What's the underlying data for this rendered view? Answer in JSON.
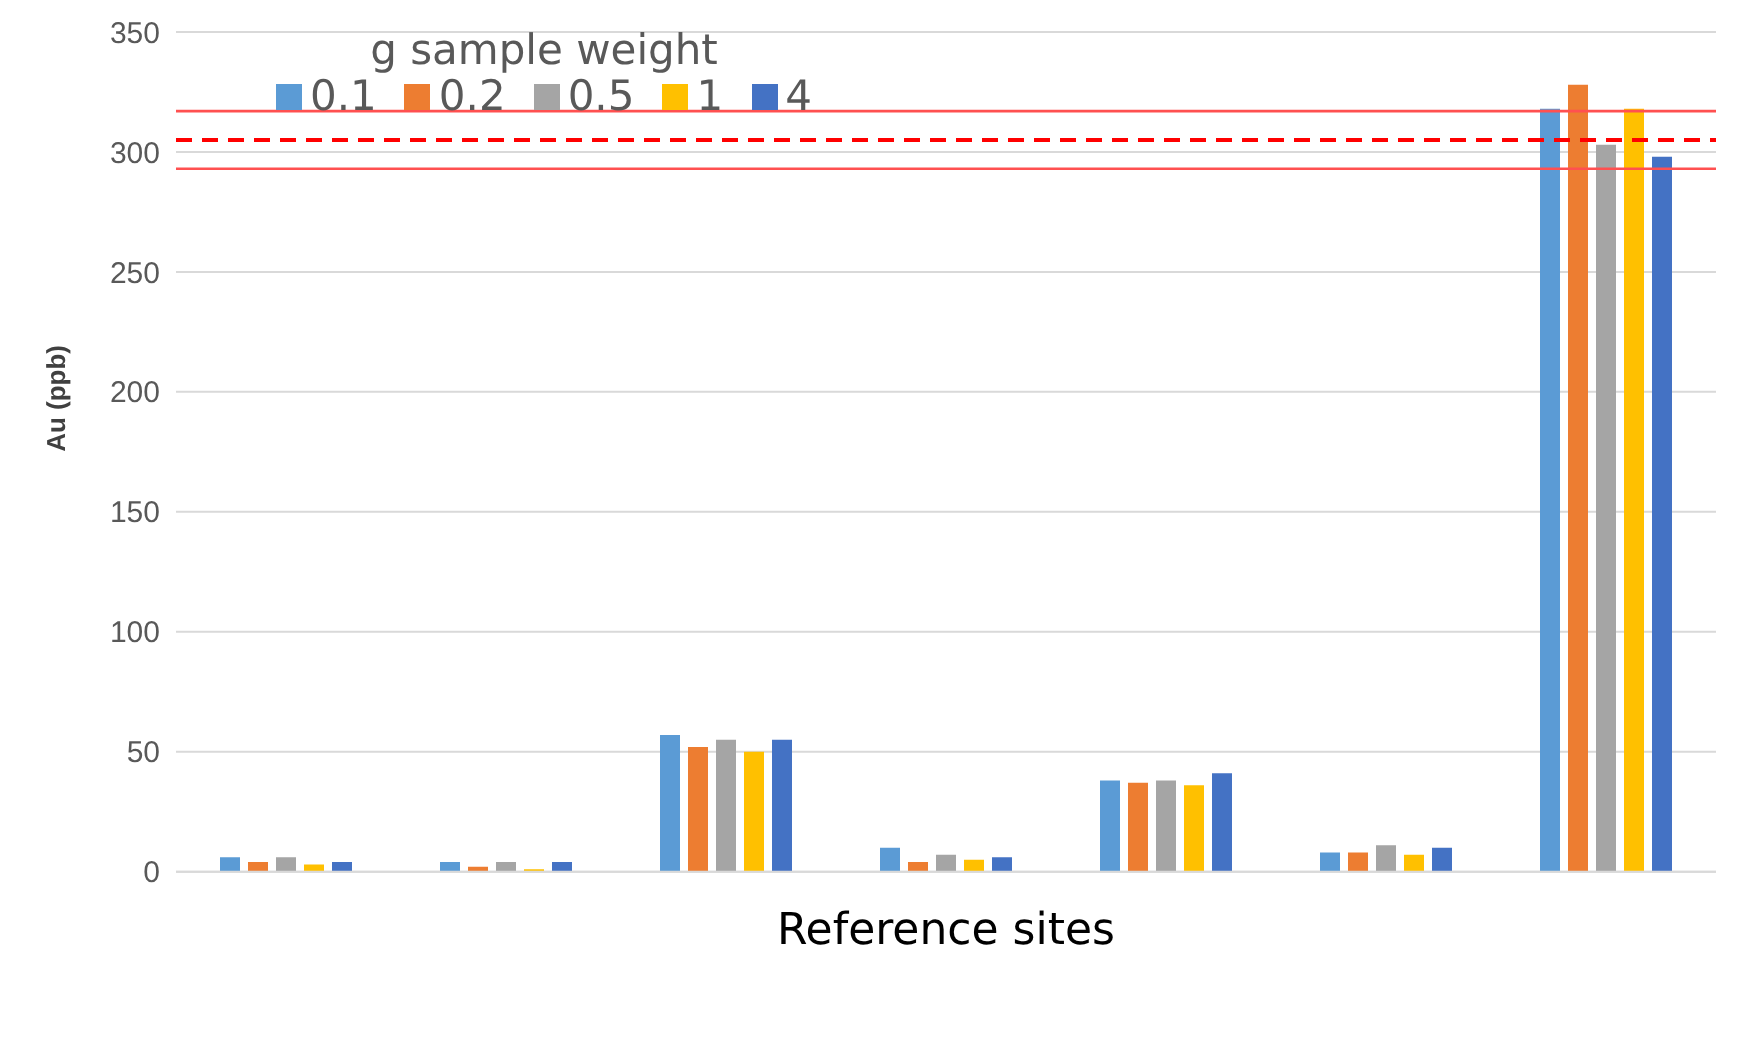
{
  "chart_data": {
    "type": "bar",
    "xlabel": "Reference sites",
    "ylabel": "Au (ppb)",
    "legend_title": "g sample weight",
    "categories": [
      null,
      null,
      null,
      null,
      null,
      null,
      null
    ],
    "series": [
      {
        "name": "0.1",
        "color": "#5b9bd5",
        "values": [
          6,
          4,
          57,
          10,
          38,
          8,
          318
        ]
      },
      {
        "name": "0.2",
        "color": "#ed7d31",
        "values": [
          4,
          2,
          52,
          4,
          37,
          8,
          328
        ]
      },
      {
        "name": "0.5",
        "color": "#a5a5a5",
        "values": [
          6,
          4,
          55,
          7,
          38,
          11,
          303
        ]
      },
      {
        "name": "1",
        "color": "#ffc000",
        "values": [
          3,
          1,
          50,
          5,
          36,
          7,
          318
        ]
      },
      {
        "name": "4",
        "color": "#4472c4",
        "values": [
          4,
          4,
          55,
          6,
          41,
          10,
          298
        ]
      }
    ],
    "ylim": [
      0,
      350
    ],
    "yticks": [
      0,
      50,
      100,
      150,
      200,
      250,
      300,
      350
    ],
    "grid": "y",
    "legend": "top left",
    "tick_labels": "y",
    "ref_lines": [
      {
        "axis": "y",
        "value": 317,
        "color": "#ff5050",
        "line_style": "solid"
      },
      {
        "axis": "y",
        "value": 305,
        "color": "#ff0000",
        "line_style": "dashed"
      },
      {
        "axis": "y",
        "value": 293,
        "color": "#ff5050",
        "line_style": "solid"
      }
    ]
  }
}
